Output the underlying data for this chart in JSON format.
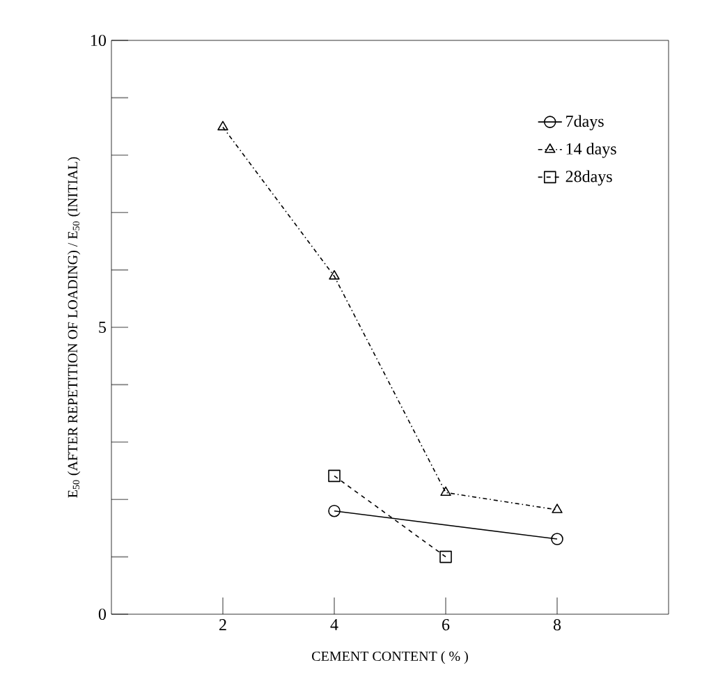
{
  "chart_data": {
    "type": "line",
    "xlabel": "CEMENT CONTENT ( % )",
    "ylabel": "E$_{50}$ (AFTER REPETITION OF LOADING) / E$_{50}$ (INITIAL)",
    "xlim": [
      0,
      10
    ],
    "ylim": [
      0,
      10
    ],
    "xticks": [
      2,
      4,
      6,
      8
    ],
    "yticks": [
      0,
      {
        "value": 1,
        "label": null
      },
      {
        "value": 2,
        "label": null
      },
      {
        "value": 3,
        "label": null
      },
      {
        "value": 4,
        "label": null
      },
      5,
      {
        "value": 6,
        "label": null
      },
      {
        "value": 7,
        "label": null
      },
      {
        "value": 8,
        "label": null
      },
      {
        "value": 9,
        "label": null
      },
      10
    ],
    "legend": "top right",
    "series": [
      {
        "name": "7days",
        "color": "#000000",
        "marker": "circle",
        "line_style": "solid",
        "x": [
          4,
          8
        ],
        "values": [
          1.8,
          1.31
        ]
      },
      {
        "name": "14 days",
        "color": "#000000",
        "marker": "triangle",
        "line_style": "dashdot",
        "x": [
          2,
          4,
          6,
          8
        ],
        "values": [
          8.49,
          5.89,
          2.12,
          1.82
        ]
      },
      {
        "name": "28days",
        "color": "#000000",
        "marker": "square",
        "line_style": "dashed",
        "x": [
          4,
          6
        ],
        "values": [
          2.41,
          1.0
        ]
      }
    ]
  }
}
